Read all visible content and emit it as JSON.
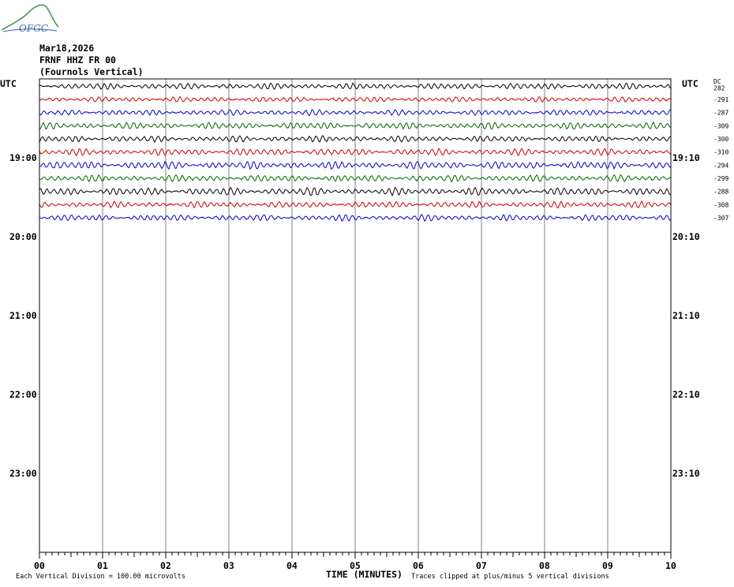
{
  "header": {
    "logo_text": "OFGC",
    "date": "Mar18,2026",
    "station": "FRNF HHZ FR 00",
    "location": "(Fournols Vertical)"
  },
  "chart_data": {
    "type": "line",
    "title": "",
    "xlabel": "TIME (MINUTES)",
    "x_ticks": [
      "00",
      "01",
      "02",
      "03",
      "04",
      "05",
      "06",
      "07",
      "08",
      "09",
      "10"
    ],
    "xlim": [
      0,
      10
    ],
    "left_axis_title": "UTC",
    "right_axis_title": "UTC",
    "dc_header": "DC",
    "left_hour_labels": [
      "19:00",
      "20:00",
      "21:00",
      "22:00",
      "23:00"
    ],
    "right_hour_labels": [
      "19:10",
      "20:10",
      "21:10",
      "22:10",
      "23:10"
    ],
    "trace_rows_total": 36,
    "trace_colors": [
      "#000000",
      "#cc0000",
      "#0000cc",
      "#006600"
    ],
    "traces": [
      {
        "dc": "282",
        "amplitude": 1.2
      },
      {
        "dc": "-291",
        "amplitude": 1.0
      },
      {
        "dc": "-287",
        "amplitude": 1.1
      },
      {
        "dc": "-309",
        "amplitude": 1.3
      },
      {
        "dc": "-300",
        "amplitude": 1.2
      },
      {
        "dc": "-310",
        "amplitude": 1.3
      },
      {
        "dc": "-294",
        "amplitude": 1.5
      },
      {
        "dc": "-299",
        "amplitude": 1.3
      },
      {
        "dc": "-288",
        "amplitude": 1.5
      },
      {
        "dc": "-308",
        "amplitude": 1.2
      },
      {
        "dc": "-307",
        "amplitude": 1.2
      }
    ],
    "footer_left": "Each Vertical Division = 100.00 microvolts",
    "footer_right": "Traces clipped at plus/minus 5 vertical divisions"
  }
}
